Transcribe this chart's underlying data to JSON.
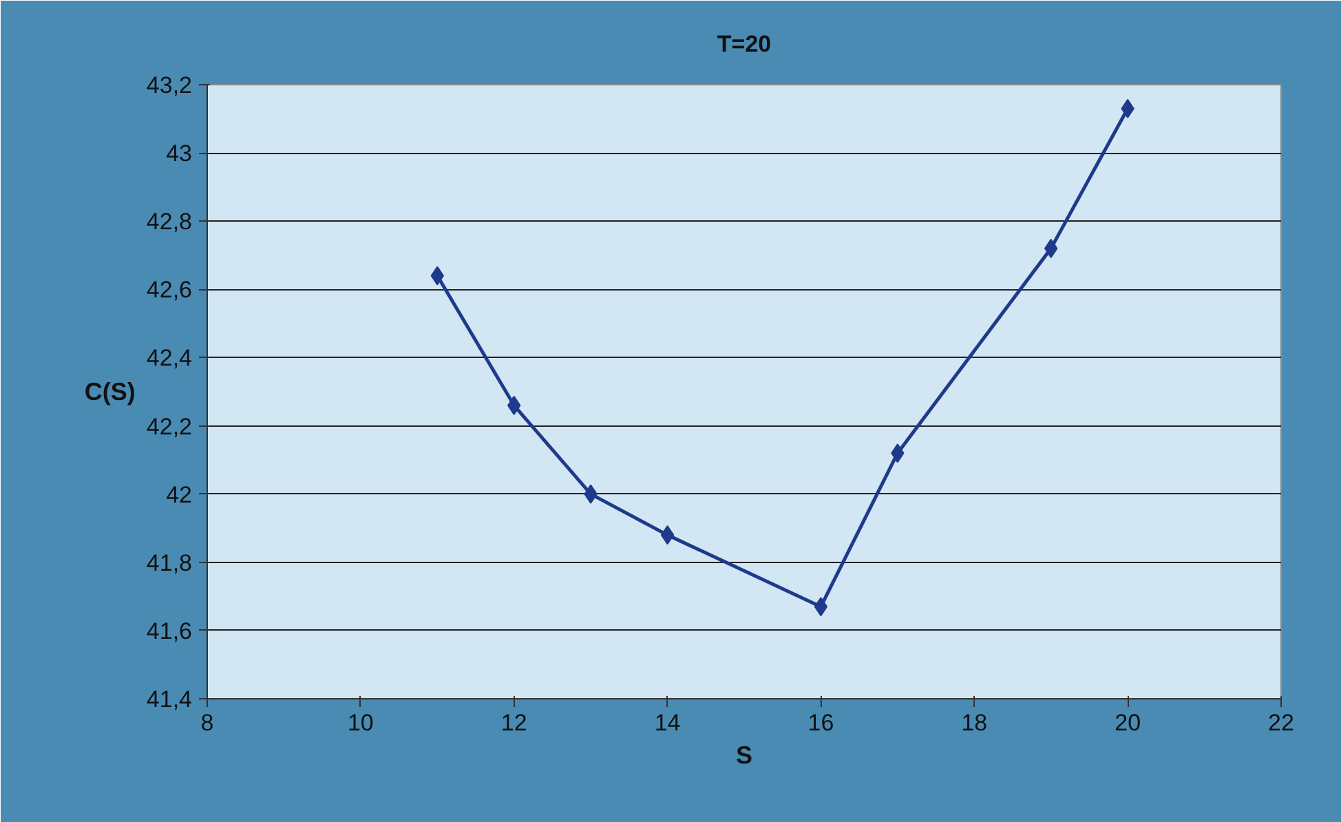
{
  "chart_data": {
    "type": "line",
    "title": "T=20",
    "xlabel": "S",
    "ylabel": "C(S)",
    "x": [
      11,
      12,
      13,
      14,
      16,
      17,
      19,
      20
    ],
    "series": [
      {
        "color": "#1f3a8c",
        "values": [
          42.64,
          42.26,
          42.0,
          41.88,
          41.67,
          42.12,
          42.72,
          43.13
        ]
      }
    ],
    "xlim": [
      8,
      22
    ],
    "xticks": [
      8,
      10,
      12,
      14,
      16,
      18,
      20,
      22
    ],
    "ylim": [
      41.4,
      43.2
    ],
    "yticks": [
      {
        "value": 41.4,
        "label": "41,4"
      },
      {
        "value": 41.6,
        "label": "41,6"
      },
      {
        "value": 41.8,
        "label": "41,8"
      },
      {
        "value": 42,
        "label": "42"
      },
      {
        "value": 42.2,
        "label": "42,2"
      },
      {
        "value": 42.4,
        "label": "42,4"
      },
      {
        "value": 42.6,
        "label": "42,6"
      },
      {
        "value": 42.8,
        "label": "42,8"
      },
      {
        "value": 43,
        "label": "43"
      },
      {
        "value": 43.2,
        "label": "43,2"
      }
    ],
    "grid": "y",
    "marker": "diamond",
    "line_style": "solid"
  }
}
